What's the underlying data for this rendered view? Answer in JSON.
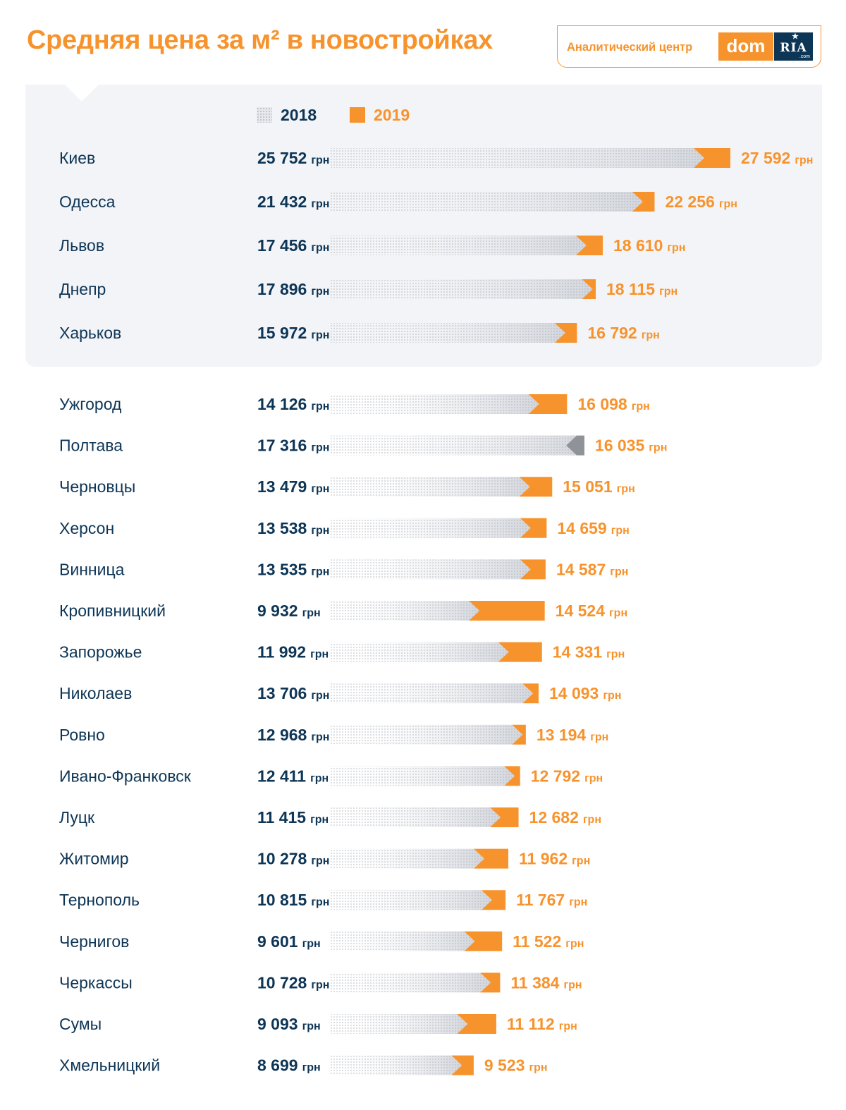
{
  "page": {
    "title": "Средняя цена за м² в новостройках",
    "logo": {
      "text": "Аналитический центр",
      "brand": "dom",
      "brand2": "RIA",
      "brand2_sub": ".com"
    }
  },
  "colors": {
    "accent": "#f7932d",
    "dark": "#0d3556",
    "bar2018": "#d3d6dc",
    "down": "#8f9296",
    "panel": "#f3f4f7"
  },
  "chart_data": {
    "type": "bar",
    "orientation": "horizontal",
    "unit": "грн",
    "legend": [
      "2018",
      "2019"
    ],
    "groups": [
      {
        "name": "top",
        "rows": [
          {
            "city": "Киев",
            "v2018": 25752,
            "v2019": 27592,
            "l2018": "25 752",
            "l2019": "27 592"
          },
          {
            "city": "Одесса",
            "v2018": 21432,
            "v2019": 22256,
            "l2018": "21 432",
            "l2019": "22 256"
          },
          {
            "city": "Львов",
            "v2018": 17456,
            "v2019": 18610,
            "l2018": "17 456",
            "l2019": "18 610"
          },
          {
            "city": "Днепр",
            "v2018": 17896,
            "v2019": 18115,
            "l2018": "17 896",
            "l2019": "18 115"
          },
          {
            "city": "Харьков",
            "v2018": 15972,
            "v2019": 16792,
            "l2018": "15 972",
            "l2019": "16 792"
          }
        ]
      },
      {
        "name": "others",
        "rows": [
          {
            "city": "Ужгород",
            "v2018": 14126,
            "v2019": 16098,
            "l2018": "14 126",
            "l2019": "16 098"
          },
          {
            "city": "Полтава",
            "v2018": 17316,
            "v2019": 16035,
            "l2018": "17 316",
            "l2019": "16 035"
          },
          {
            "city": "Черновцы",
            "v2018": 13479,
            "v2019": 15051,
            "l2018": "13 479",
            "l2019": "15 051"
          },
          {
            "city": "Херсон",
            "v2018": 13538,
            "v2019": 14659,
            "l2018": "13 538",
            "l2019": "14 659"
          },
          {
            "city": "Винница",
            "v2018": 13535,
            "v2019": 14587,
            "l2018": "13 535",
            "l2019": "14 587"
          },
          {
            "city": "Кропивницкий",
            "v2018": 9932,
            "v2019": 14524,
            "l2018": "9 932",
            "l2019": "14 524"
          },
          {
            "city": "Запорожье",
            "v2018": 11992,
            "v2019": 14331,
            "l2018": "11 992",
            "l2019": "14 331"
          },
          {
            "city": "Николаев",
            "v2018": 13706,
            "v2019": 14093,
            "l2018": "13 706",
            "l2019": "14 093"
          },
          {
            "city": "Ровно",
            "v2018": 12968,
            "v2019": 13194,
            "l2018": "12 968",
            "l2019": "13 194"
          },
          {
            "city": "Ивано-Франковск",
            "v2018": 12411,
            "v2019": 12792,
            "l2018": "12 411",
            "l2019": "12 792"
          },
          {
            "city": "Луцк",
            "v2018": 11415,
            "v2019": 12682,
            "l2018": "11 415",
            "l2019": "12 682"
          },
          {
            "city": "Житомир",
            "v2018": 10278,
            "v2019": 11962,
            "l2018": "10 278",
            "l2019": "11 962"
          },
          {
            "city": "Тернополь",
            "v2018": 10815,
            "v2019": 11767,
            "l2018": "10 815",
            "l2019": "11 767"
          },
          {
            "city": "Чернигов",
            "v2018": 9601,
            "v2019": 11522,
            "l2018": "9 601",
            "l2019": "11 522"
          },
          {
            "city": "Черкассы",
            "v2018": 10728,
            "v2019": 11384,
            "l2018": "10 728",
            "l2019": "11 384"
          },
          {
            "city": "Сумы",
            "v2018": 9093,
            "v2019": 11112,
            "l2018": "9 093",
            "l2019": "11 112"
          },
          {
            "city": "Хмельницкий",
            "v2018": 8699,
            "v2019": 9523,
            "l2018": "8 699",
            "l2019": "9 523"
          }
        ]
      }
    ]
  }
}
